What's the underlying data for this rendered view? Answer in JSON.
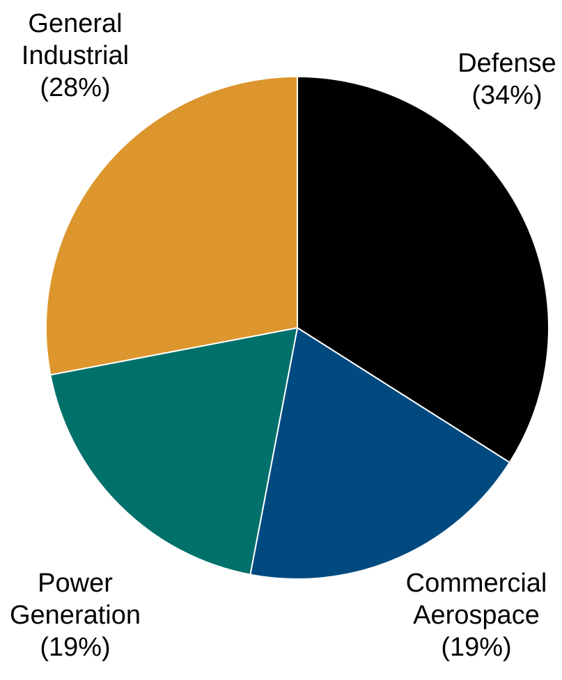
{
  "chart_data": {
    "type": "pie",
    "start": "12 o'clock",
    "direction": "clockwise",
    "slices": [
      {
        "name": "Defense",
        "value": 34,
        "color": "#000000",
        "label_lines": [
          "Defense",
          "(34%)"
        ]
      },
      {
        "name": "Commercial Aerospace",
        "value": 19,
        "color": "#004a80",
        "label_lines": [
          "Commercial",
          "Aerospace",
          "(19%)"
        ]
      },
      {
        "name": "Power Generation",
        "value": 19,
        "color": "#00706a",
        "label_lines": [
          "Power",
          "Generation",
          "(19%)"
        ]
      },
      {
        "name": "General Industrial",
        "value": 28,
        "color": "#dc962d",
        "label_lines": [
          "General",
          "Industrial",
          "(28%)"
        ]
      }
    ]
  }
}
